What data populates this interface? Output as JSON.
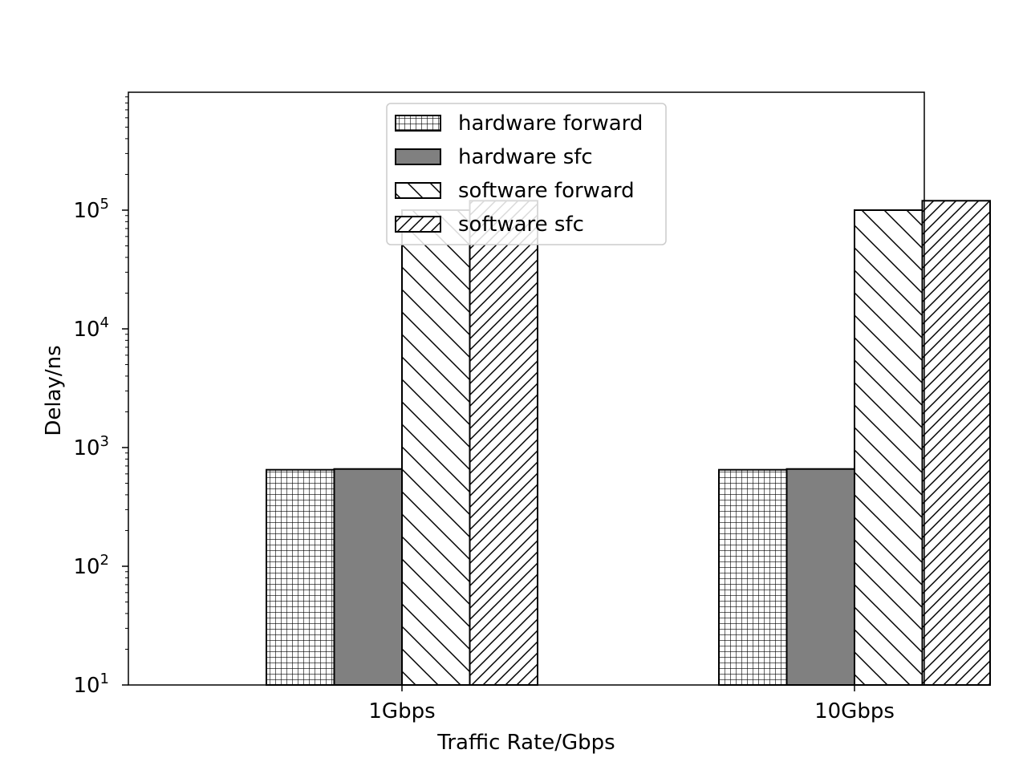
{
  "chart_data": {
    "type": "bar",
    "scale": "log",
    "xlabel": "Traffic Rate/Gbps",
    "ylabel": "Delay/ns",
    "categories": [
      "1Gbps",
      "10Gbps"
    ],
    "ylim": [
      10,
      1000000
    ],
    "yticks": [
      {
        "value": 10,
        "base": "10",
        "exp": "1"
      },
      {
        "value": 100,
        "base": "10",
        "exp": "2"
      },
      {
        "value": 1000,
        "base": "10",
        "exp": "3"
      },
      {
        "value": 10000,
        "base": "10",
        "exp": "4"
      },
      {
        "value": 100000,
        "base": "10",
        "exp": "5"
      }
    ],
    "series": [
      {
        "name": "hardware forward",
        "values": [
          650,
          650
        ],
        "fill": "#ffffff",
        "pattern": "grid"
      },
      {
        "name": "hardware sfc",
        "values": [
          660,
          660
        ],
        "fill": "#808080",
        "pattern": "none"
      },
      {
        "name": "software forward",
        "values": [
          100000,
          100000
        ],
        "fill": "#ffffff",
        "pattern": "backslash"
      },
      {
        "name": "software sfc",
        "values": [
          120000,
          120000
        ],
        "fill": "#ffffff",
        "pattern": "slash"
      }
    ],
    "legend_position": "top-center",
    "grid": false
  }
}
